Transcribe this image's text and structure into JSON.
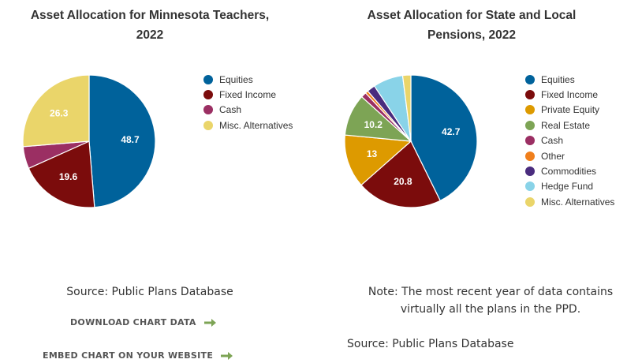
{
  "chart_data": [
    {
      "type": "pie",
      "title": "Asset Allocation for Minnesota Teachers, 2022",
      "title_lines": [
        "Asset Allocation for Minnesota Teachers,",
        "2022"
      ],
      "legend_position": "right",
      "slices": [
        {
          "label": "Equities",
          "value": 48.7,
          "color": "#00629b",
          "show_label": true
        },
        {
          "label": "Fixed Income",
          "value": 19.6,
          "color": "#7b0c0c",
          "show_label": true
        },
        {
          "label": "Cash",
          "value": 5.4,
          "color": "#9b2f63",
          "show_label": false
        },
        {
          "label": "Misc. Alternatives",
          "value": 26.3,
          "color": "#ead56a",
          "show_label": true
        }
      ]
    },
    {
      "type": "pie",
      "title": "Asset Allocation for State and Local Pensions, 2022",
      "title_lines": [
        "Asset Allocation for State and Local",
        "Pensions, 2022"
      ],
      "legend_position": "right",
      "slices": [
        {
          "label": "Equities",
          "value": 42.7,
          "color": "#00629b",
          "show_label": true
        },
        {
          "label": "Fixed Income",
          "value": 20.8,
          "color": "#7b0c0c",
          "show_label": true
        },
        {
          "label": "Private Equity",
          "value": 13,
          "color": "#dd9a00",
          "show_label": true
        },
        {
          "label": "Real Estate",
          "value": 10.2,
          "color": "#7da455",
          "show_label": true
        },
        {
          "label": "Cash",
          "value": 1.3,
          "color": "#9b2f63",
          "show_label": false
        },
        {
          "label": "Other",
          "value": 0.7,
          "color": "#f07f1c",
          "show_label": false
        },
        {
          "label": "Commodities",
          "value": 2,
          "color": "#4a2c7e",
          "show_label": false
        },
        {
          "label": "Hedge Fund",
          "value": 7.3,
          "color": "#89d3e8",
          "show_label": false
        },
        {
          "label": "Misc. Alternatives",
          "value": 2,
          "color": "#ead56a",
          "show_label": false
        }
      ]
    }
  ],
  "source_left": "Source: Public Plans Database",
  "note_right_lines": [
    "Note: The most recent year of data contains",
    "virtually all the plans in the PPD."
  ],
  "source_right": "Source: Public Plans Database",
  "links": {
    "download": "DOWNLOAD CHART DATA",
    "embed": "EMBED CHART ON YOUR WEBSITE"
  },
  "arrow_color": "#7da455"
}
